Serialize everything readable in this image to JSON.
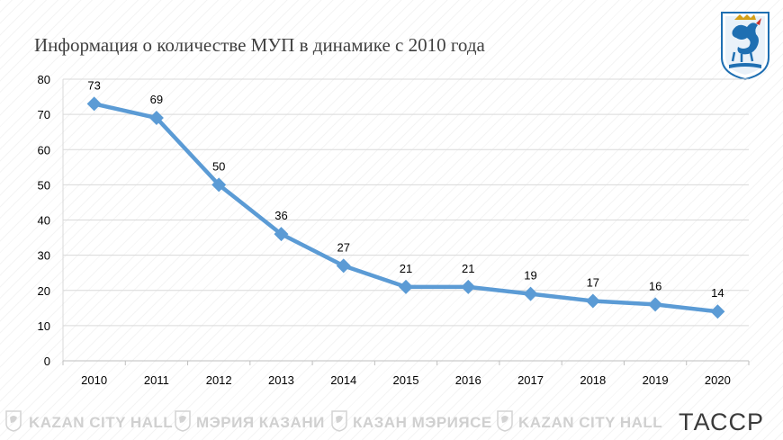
{
  "chart_data": {
    "type": "line",
    "title": "Информация о количестве МУП в динамике с 2010 года",
    "categories": [
      "2010",
      "2011",
      "2012",
      "2013",
      "2014",
      "2015",
      "2016",
      "2017",
      "2018",
      "2019",
      "2020"
    ],
    "values": [
      73,
      69,
      50,
      36,
      27,
      21,
      21,
      19,
      17,
      16,
      14
    ],
    "ylim": [
      0,
      80
    ],
    "yticks": [
      0,
      10,
      20,
      30,
      40,
      50,
      60,
      70,
      80
    ],
    "xlabel": "",
    "ylabel": "",
    "grid": true,
    "legend": "none",
    "marker": "diamond",
    "data_labels": true,
    "colors": {
      "line": "#5b9bd5",
      "grid": "#d9d9d9",
      "text": "#000000"
    }
  },
  "watermarks": [
    "KAZAN CITY HALL",
    "МЭРИЯ КАЗАНИ",
    "КАЗАН МЭРИЯСЕ",
    "KAZAN CITY HALL"
  ],
  "agency_logo": "ТАССР",
  "emblem_icon": "kazan-coat-of-arms-icon"
}
